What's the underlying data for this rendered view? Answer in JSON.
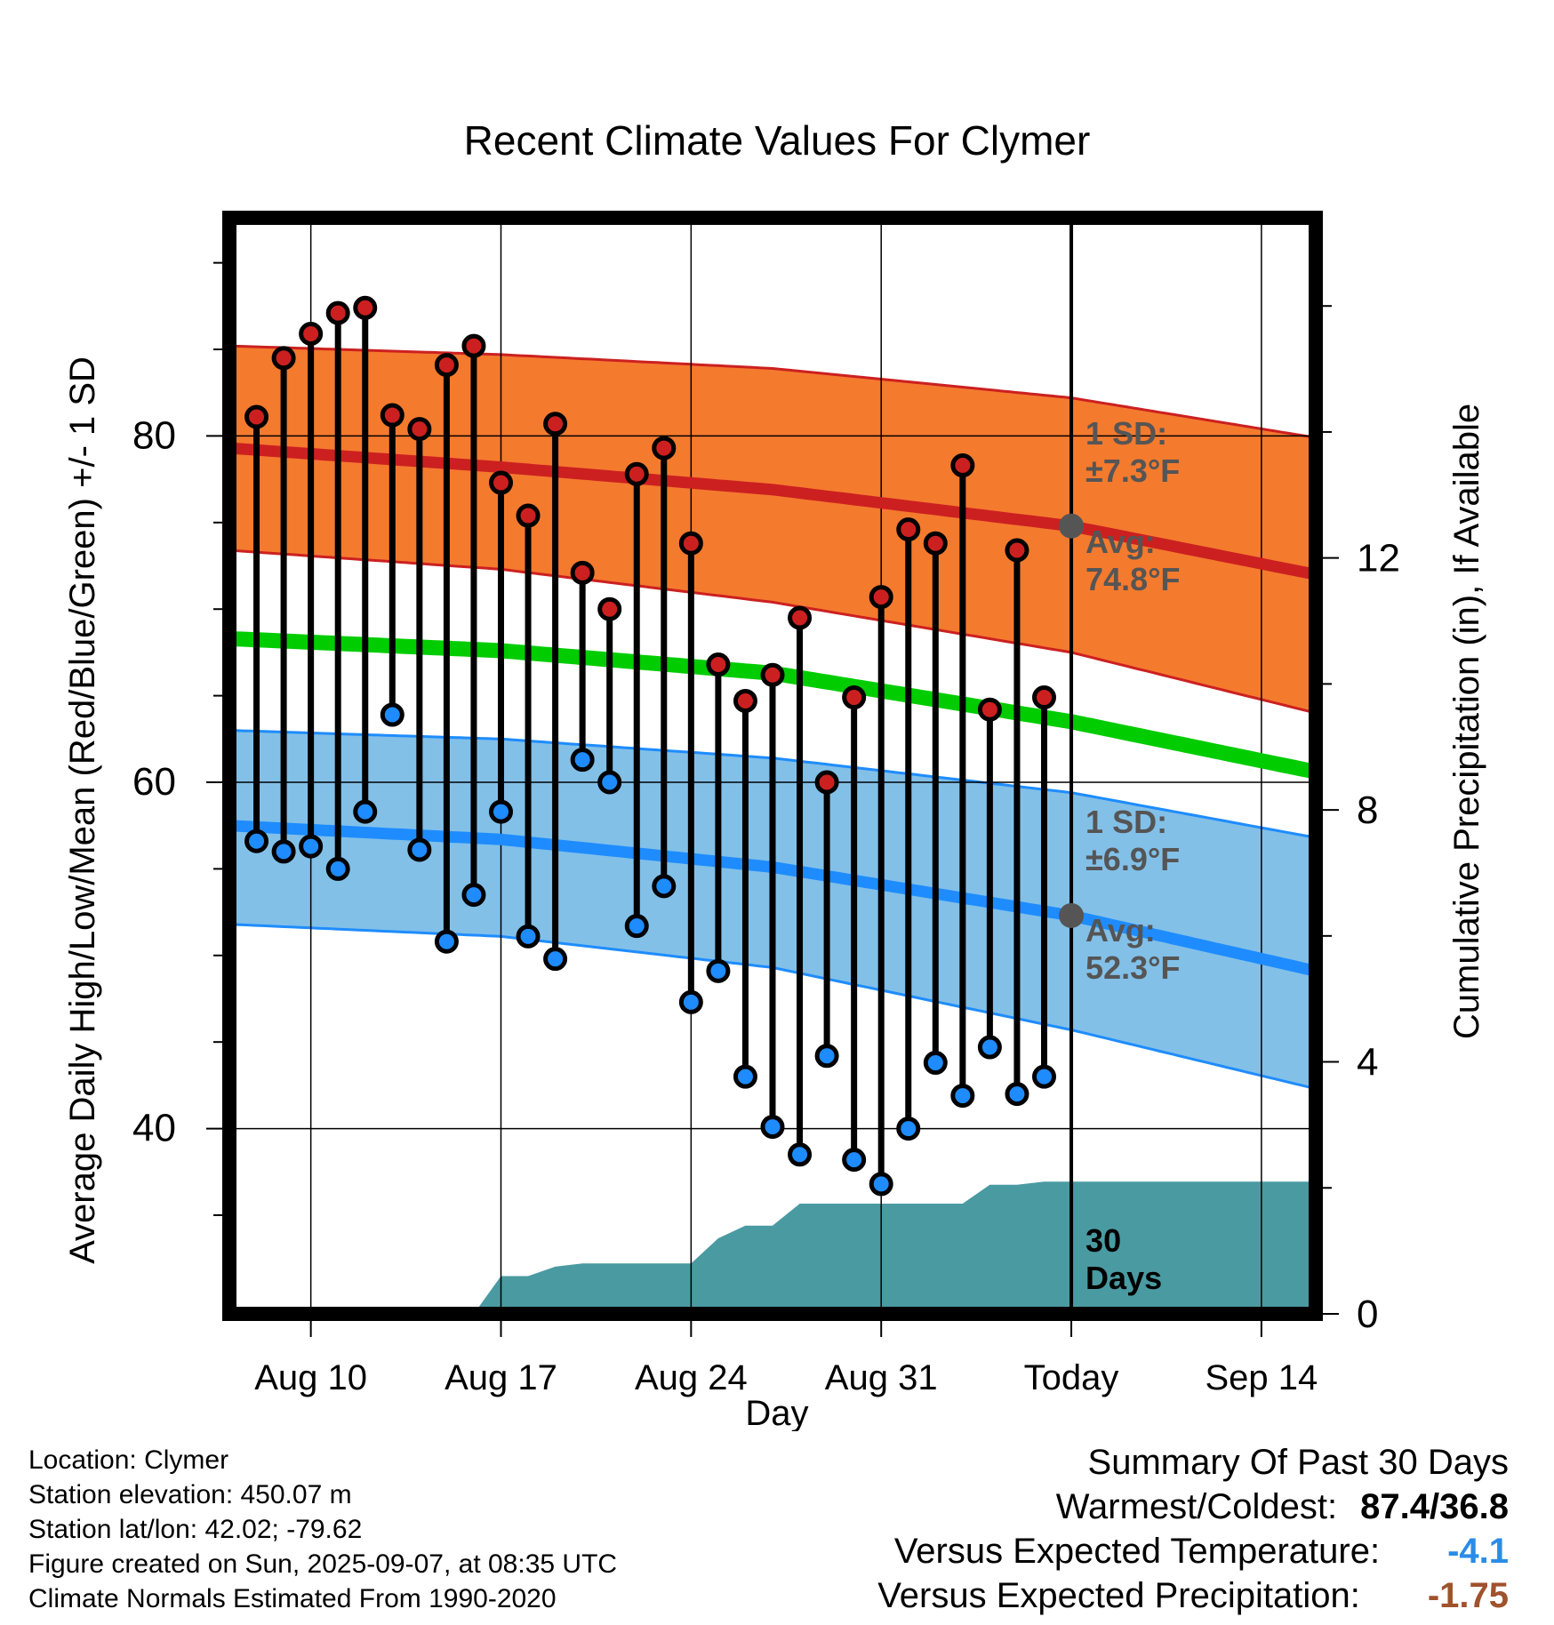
{
  "chart_data": {
    "type": "line",
    "title": "Recent Climate Values For Clymer",
    "xlabel": "Day",
    "ylabel": "Average Daily High/Low/Mean (Red/Blue/Green) +/- 1 SD",
    "y2label": "Cumulative Precipitation (in), If Available",
    "x_range": [
      "2025-08-07",
      "2025-09-16"
    ],
    "ylim": [
      29.3,
      92.6
    ],
    "y2lim": [
      0,
      17.4
    ],
    "yticks": [
      40,
      60,
      80
    ],
    "y2ticks": [
      0,
      4,
      8,
      12
    ],
    "xticks": [
      {
        "date": "2025-08-10",
        "label": "Aug 10"
      },
      {
        "date": "2025-08-17",
        "label": "Aug 17"
      },
      {
        "date": "2025-08-24",
        "label": "Aug 24"
      },
      {
        "date": "2025-08-31",
        "label": "Aug 31"
      },
      {
        "date": "2025-09-07",
        "label": "Today"
      },
      {
        "date": "2025-09-14",
        "label": "Sep 14"
      }
    ],
    "grid": true,
    "today": "2025-09-07",
    "dates": [
      "2025-08-08",
      "2025-08-09",
      "2025-08-10",
      "2025-08-11",
      "2025-08-12",
      "2025-08-13",
      "2025-08-14",
      "2025-08-15",
      "2025-08-16",
      "2025-08-17",
      "2025-08-18",
      "2025-08-19",
      "2025-08-20",
      "2025-08-21",
      "2025-08-22",
      "2025-08-23",
      "2025-08-24",
      "2025-08-25",
      "2025-08-26",
      "2025-08-27",
      "2025-08-28",
      "2025-08-29",
      "2025-08-30",
      "2025-08-31",
      "2025-09-01",
      "2025-09-02",
      "2025-09-03",
      "2025-09-04",
      "2025-09-05",
      "2025-09-06"
    ],
    "highs": [
      81.1,
      84.5,
      85.9,
      87.1,
      87.4,
      81.2,
      80.4,
      84.1,
      85.2,
      77.3,
      75.4,
      80.7,
      72.1,
      70.0,
      77.8,
      79.3,
      73.8,
      66.8,
      64.7,
      66.2,
      69.5,
      60.0,
      64.9,
      70.7,
      74.6,
      73.8,
      78.3,
      64.2,
      73.4,
      64.9
    ],
    "lows": [
      56.6,
      56.0,
      56.3,
      55.0,
      58.3,
      63.9,
      56.1,
      50.8,
      53.5,
      58.3,
      51.1,
      49.8,
      61.3,
      60.0,
      51.7,
      54.0,
      47.3,
      49.1,
      43.0,
      40.1,
      38.5,
      44.2,
      38.2,
      36.8,
      40.0,
      43.8,
      41.9,
      44.7,
      42.0,
      43.0
    ],
    "normal_dates": [
      "2025-08-07",
      "2025-08-17",
      "2025-08-27",
      "2025-09-07",
      "2025-09-16"
    ],
    "normal_high": [
      79.3,
      78.2,
      76.9,
      74.8,
      72.0
    ],
    "normal_high_upper": [
      85.2,
      84.7,
      83.9,
      82.2,
      79.9
    ],
    "normal_high_lower": [
      73.4,
      72.3,
      70.4,
      67.5,
      64.0
    ],
    "normal_low": [
      57.5,
      56.7,
      55.1,
      52.3,
      49.1
    ],
    "normal_low_upper": [
      63.0,
      62.5,
      61.4,
      59.4,
      56.8
    ],
    "normal_low_lower": [
      51.8,
      51.1,
      49.3,
      45.7,
      42.3
    ],
    "normal_mean": [
      68.3,
      67.6,
      66.3,
      63.5,
      60.6
    ],
    "precip_cumulative": {
      "dates": [
        "2025-08-07",
        "2025-08-16",
        "2025-08-17",
        "2025-08-18",
        "2025-08-19",
        "2025-08-20",
        "2025-08-24",
        "2025-08-25",
        "2025-08-26",
        "2025-08-27",
        "2025-08-28",
        "2025-09-03",
        "2025-09-04",
        "2025-09-05",
        "2025-09-06",
        "2025-09-16"
      ],
      "values": [
        0,
        0,
        0.6,
        0.6,
        0.75,
        0.8,
        0.8,
        1.2,
        1.4,
        1.4,
        1.75,
        1.75,
        2.05,
        2.05,
        2.1,
        2.1
      ]
    },
    "annotations": {
      "high_sd": "1 SD: ±7.3°F",
      "high_avg": "Avg: 74.8°F",
      "low_sd": "1 SD: ±6.9°F",
      "low_avg": "Avg: 52.3°F",
      "precip_days": "30 Days"
    },
    "colors": {
      "high_band": "#f47a2e",
      "high_band_edge": "#cc2020",
      "high_line": "#cc2020",
      "high_point": "#cc2020",
      "low_band": "#82c0e8",
      "low_band_edge": "#1e8cff",
      "low_line": "#1e8cff",
      "low_point": "#1e8cff",
      "mean_line": "#00cc00",
      "precip": "#4a9aa2",
      "annotation": "#555555"
    }
  },
  "footer": {
    "location": "Location: Clymer",
    "elevation": "Station elevation: 450.07 m",
    "latlon": "Station lat/lon: 42.02; -79.62",
    "created": "Figure created on Sun, 2025-09-07, at 08:35 UTC",
    "normals": "Climate Normals Estimated From 1990-2020"
  },
  "summary": {
    "title": "Summary Of Past 30 Days",
    "warm_cold_label": "Warmest/Coldest:",
    "warmest": "87.4",
    "separator": "/",
    "coldest": "36.8",
    "temp_label": "Versus Expected Temperature:",
    "temp_value": "-4.1",
    "temp_color": "#2a8ce6",
    "precip_label": "Versus Expected Precipitation:",
    "precip_value": "-1.75",
    "precip_color": "#a0522d"
  }
}
